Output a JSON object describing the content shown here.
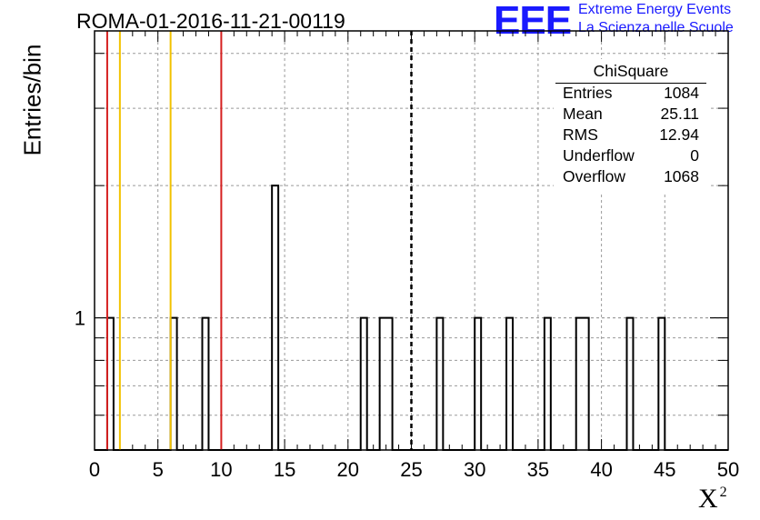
{
  "header": {
    "title": "ROMA-01-2016-11-21-00119",
    "logo_mark": "EEE",
    "logo_line1": "Extreme Energy Events",
    "logo_line2": "La Scienza nelle Scuole"
  },
  "colors": {
    "red": "#d62020",
    "yellow": "#f2c200",
    "blue": "#1a1aff"
  },
  "stats": {
    "title": "ChiSquare",
    "rows": [
      {
        "label": "Entries",
        "value": "1084"
      },
      {
        "label": "Mean",
        "value": "25.11"
      },
      {
        "label": "RMS",
        "value": "12.94"
      },
      {
        "label": "Underflow",
        "value": "0"
      },
      {
        "label": "Overflow",
        "value": "1068"
      }
    ]
  },
  "chart_data": {
    "type": "histogram",
    "xlabel": "X",
    "xlabel_sup": "2",
    "ylabel": "Entries/bin",
    "xlim": [
      0,
      50
    ],
    "ylim": [
      0.5,
      4.5
    ],
    "ylog": true,
    "grid": true,
    "bin_width": 0.5,
    "x_ticks": [
      0,
      5,
      10,
      15,
      20,
      25,
      30,
      35,
      40,
      45,
      50
    ],
    "y_tick_labels": [
      {
        "value": 1,
        "label": "1"
      }
    ],
    "bins": [
      {
        "x": 1.0,
        "count": 1
      },
      {
        "x": 6.0,
        "count": 1
      },
      {
        "x": 8.5,
        "count": 1
      },
      {
        "x": 14.0,
        "count": 2
      },
      {
        "x": 21.0,
        "count": 1
      },
      {
        "x": 22.5,
        "count": 1
      },
      {
        "x": 23.0,
        "count": 1
      },
      {
        "x": 27.0,
        "count": 1
      },
      {
        "x": 30.0,
        "count": 1
      },
      {
        "x": 32.5,
        "count": 1
      },
      {
        "x": 35.5,
        "count": 1
      },
      {
        "x": 38.0,
        "count": 1
      },
      {
        "x": 38.5,
        "count": 1
      },
      {
        "x": 42.0,
        "count": 1
      },
      {
        "x": 44.5,
        "count": 1
      }
    ],
    "reference_lines": [
      {
        "x": 1,
        "color": "red"
      },
      {
        "x": 2,
        "color": "yellow"
      },
      {
        "x": 6,
        "color": "yellow"
      },
      {
        "x": 10,
        "color": "red"
      },
      {
        "x": 25,
        "color": "black",
        "dashed": true
      }
    ]
  }
}
